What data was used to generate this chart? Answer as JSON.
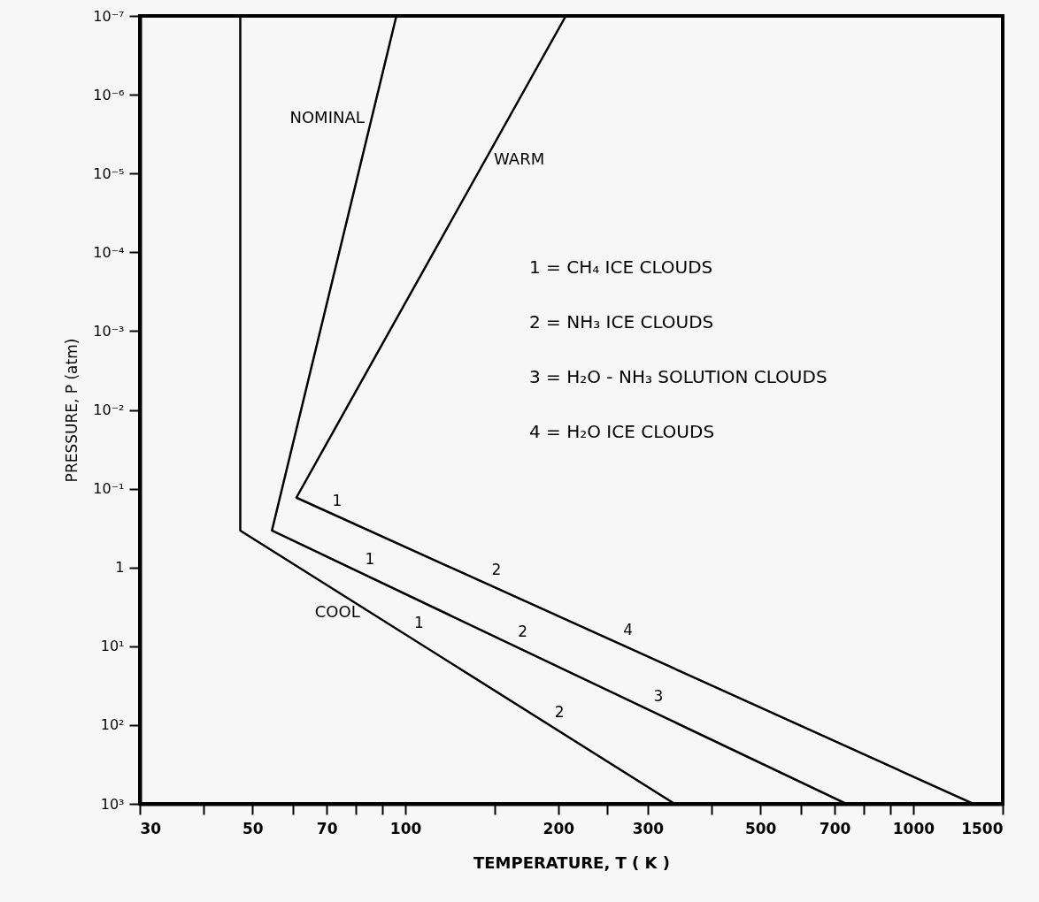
{
  "chart_data": {
    "type": "line",
    "xlabel": "TEMPERATURE, T ( K )",
    "ylabel": "PRESSURE, P (atm)",
    "log": "xy",
    "xlim": [
      30,
      1500
    ],
    "xticks": [
      30,
      {
        "value": 40,
        "label": null
      },
      50,
      {
        "value": 60,
        "label": null
      },
      70,
      {
        "value": 80,
        "label": null
      },
      {
        "value": 90,
        "label": null
      },
      100,
      {
        "value": 150,
        "label": null
      },
      200,
      {
        "value": 250,
        "label": null
      },
      300,
      {
        "value": 400,
        "label": null
      },
      500,
      {
        "value": 600,
        "label": null
      },
      700,
      {
        "value": 800,
        "label": null
      },
      {
        "value": 900,
        "label": null
      },
      1000,
      1500
    ],
    "ylim": [
      1000,
      1e-07
    ],
    "yticks": [
      {
        "value": 1e-07,
        "label": "10⁻⁷"
      },
      {
        "value": 1e-06,
        "label": "10⁻⁶"
      },
      {
        "value": 1e-05,
        "label": "10⁻⁵"
      },
      {
        "value": 0.0001,
        "label": "10⁻⁴"
      },
      {
        "value": 0.001,
        "label": "10⁻³"
      },
      {
        "value": 0.01,
        "label": "10⁻²"
      },
      {
        "value": 0.1,
        "label": "10⁻¹"
      },
      1,
      {
        "value": 10,
        "label": "10¹"
      },
      {
        "value": 100,
        "label": "10²"
      },
      {
        "value": 1000,
        "label": "10³"
      }
    ],
    "grid": false,
    "marker": "none",
    "line_style": "solid",
    "series": [
      {
        "name": "COOL",
        "color": "#000000",
        "x": [
          47.3,
          47.3,
          339
        ],
        "values": [
          1e-07,
          0.34,
          1000
        ]
      },
      {
        "name": "NOMINAL",
        "color": "#000000",
        "x": [
          96,
          54.6,
          738
        ],
        "values": [
          1e-07,
          0.34,
          1000
        ]
      },
      {
        "name": "WARM",
        "color": "#000000",
        "x": [
          207,
          61,
          1313
        ],
        "values": [
          1e-07,
          0.13,
          1000
        ]
      }
    ],
    "annotations": [
      {
        "text": "1",
        "x": 69,
        "y": 0.2
      },
      {
        "text": "2",
        "x": 142,
        "y": 1.5
      },
      {
        "text": "4",
        "x": 258,
        "y": 8.7
      },
      {
        "text": "1",
        "x": 80,
        "y": 1.1
      },
      {
        "text": "2",
        "x": 160,
        "y": 9
      },
      {
        "text": "3",
        "x": 296,
        "y": 60
      },
      {
        "text": "1",
        "x": 100,
        "y": 7
      },
      {
        "text": "2",
        "x": 189,
        "y": 94
      },
      "1 = CH₄ ICE CLOUDS",
      "2 = NH₃ ICE CLOUDS",
      "3 = H₂O - NH₃ SOLUTION CLOUDS",
      "4 = H₂O ICE CLOUDS"
    ]
  }
}
